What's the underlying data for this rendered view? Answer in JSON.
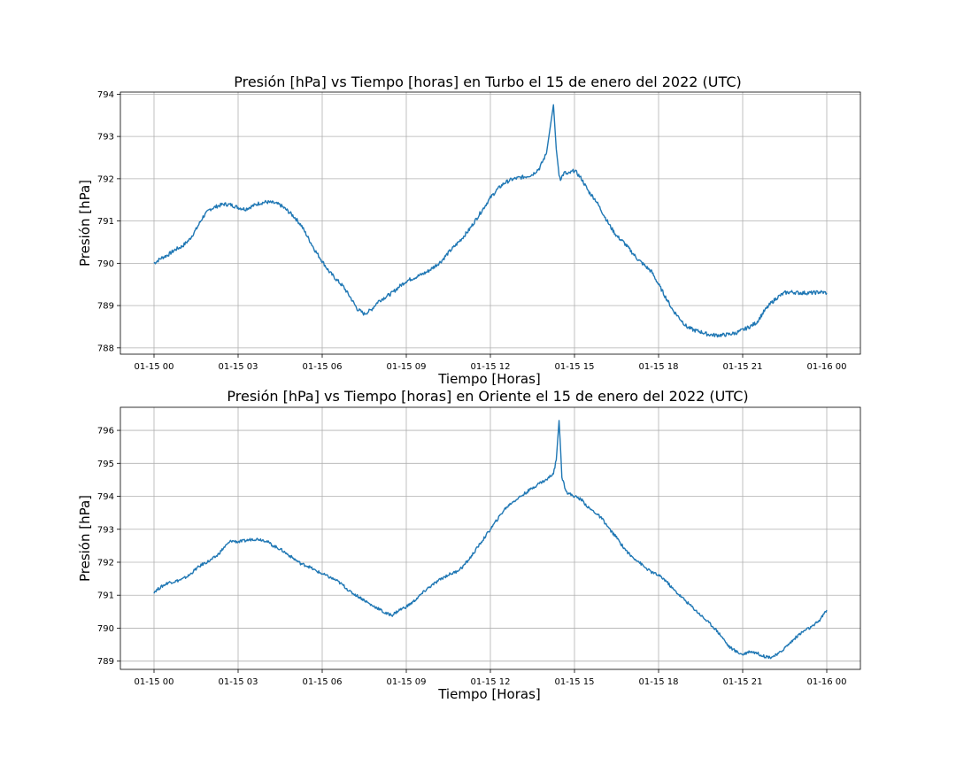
{
  "chart_data": [
    {
      "type": "line",
      "title": "Presión [hPa] vs Tiempo [horas] en Turbo el 15 de enero del 2022 (UTC)",
      "xlabel": "Tiempo [Horas]",
      "ylabel": "Presión [hPa]",
      "x_tick_labels": [
        "01-15 00",
        "01-15 03",
        "01-15 06",
        "01-15 09",
        "01-15 12",
        "01-15 15",
        "01-15 18",
        "01-15 21",
        "01-16 00"
      ],
      "x_ticks_hours": [
        0,
        3,
        6,
        9,
        12,
        15,
        18,
        21,
        24
      ],
      "y_ticks": [
        788,
        789,
        790,
        791,
        792,
        793,
        794
      ],
      "xlim_hours": [
        -1.2,
        25.2
      ],
      "ylim": [
        787.85,
        794.05
      ],
      "grid": true,
      "color": "#1f77b4",
      "series": [
        {
          "x_hours": [
            0,
            0.25,
            0.5,
            0.75,
            1,
            1.25,
            1.5,
            1.75,
            2,
            2.25,
            2.5,
            2.75,
            3,
            3.25,
            3.5,
            3.75,
            4,
            4.25,
            4.5,
            4.75,
            5,
            5.25,
            5.5,
            5.75,
            6,
            6.25,
            6.5,
            6.75,
            7,
            7.25,
            7.5,
            7.75,
            8,
            8.25,
            8.5,
            8.75,
            9,
            9.25,
            9.5,
            9.75,
            10,
            10.25,
            10.5,
            10.75,
            11,
            11.25,
            11.5,
            11.75,
            12,
            12.25,
            12.5,
            12.75,
            13,
            13.25,
            13.5,
            13.75,
            14,
            14.25,
            14.35,
            14.45,
            14.5,
            14.55,
            14.65,
            14.75,
            15,
            15.25,
            15.5,
            15.75,
            16,
            16.25,
            16.5,
            16.75,
            17,
            17.25,
            17.5,
            17.75,
            18,
            18.25,
            18.5,
            18.75,
            19,
            19.25,
            19.5,
            19.75,
            20,
            20.25,
            20.5,
            20.75,
            21,
            21.25,
            21.5,
            21.75,
            22,
            22.25,
            22.5,
            22.75,
            23,
            23.25,
            23.5,
            23.75,
            24
          ],
          "y": [
            790.0,
            790.12,
            790.2,
            790.32,
            790.4,
            790.55,
            790.8,
            791.1,
            791.28,
            791.35,
            791.4,
            791.38,
            791.32,
            791.28,
            791.35,
            791.42,
            791.45,
            791.43,
            791.38,
            791.25,
            791.1,
            790.9,
            790.6,
            790.3,
            790.05,
            789.8,
            789.62,
            789.45,
            789.2,
            788.92,
            788.8,
            788.9,
            789.1,
            789.2,
            789.3,
            789.45,
            789.58,
            789.65,
            789.72,
            789.8,
            789.92,
            790.05,
            790.25,
            790.42,
            790.6,
            790.8,
            791.05,
            791.3,
            791.55,
            791.75,
            791.9,
            791.98,
            792.02,
            792.05,
            792.1,
            792.25,
            792.6,
            793.75,
            792.7,
            792.1,
            792.0,
            792.05,
            792.15,
            792.1,
            792.2,
            792.0,
            791.7,
            791.5,
            791.2,
            790.9,
            790.65,
            790.5,
            790.3,
            790.1,
            789.95,
            789.8,
            789.5,
            789.2,
            788.9,
            788.7,
            788.5,
            788.42,
            788.38,
            788.32,
            788.3,
            788.3,
            788.32,
            788.35,
            788.42,
            788.5,
            788.6,
            788.85,
            789.05,
            789.2,
            789.3,
            789.32,
            789.3,
            789.3,
            789.3,
            789.32,
            789.3
          ]
        }
      ]
    },
    {
      "type": "line",
      "title": "Presión [hPa] vs Tiempo [horas] en Oriente el 15 de enero del 2022 (UTC)",
      "xlabel": "Tiempo [Horas]",
      "ylabel": "Presión [hPa]",
      "x_tick_labels": [
        "01-15 00",
        "01-15 03",
        "01-15 06",
        "01-15 09",
        "01-15 12",
        "01-15 15",
        "01-15 18",
        "01-15 21",
        "01-16 00"
      ],
      "x_ticks_hours": [
        0,
        3,
        6,
        9,
        12,
        15,
        18,
        21,
        24
      ],
      "y_ticks": [
        789,
        790,
        791,
        792,
        793,
        794,
        795,
        796
      ],
      "xlim_hours": [
        -1.2,
        25.2
      ],
      "ylim": [
        788.75,
        796.7
      ],
      "grid": true,
      "color": "#1f77b4",
      "series": [
        {
          "x_hours": [
            0,
            0.25,
            0.5,
            0.75,
            1,
            1.25,
            1.5,
            1.75,
            2,
            2.25,
            2.5,
            2.75,
            3,
            3.25,
            3.5,
            3.75,
            4,
            4.25,
            4.5,
            4.75,
            5,
            5.25,
            5.5,
            5.75,
            6,
            6.25,
            6.5,
            6.75,
            7,
            7.25,
            7.5,
            7.75,
            8,
            8.25,
            8.5,
            8.75,
            9,
            9.25,
            9.5,
            9.75,
            10,
            10.25,
            10.5,
            10.75,
            11,
            11.25,
            11.5,
            11.75,
            12,
            12.25,
            12.5,
            12.75,
            13,
            13.25,
            13.5,
            13.75,
            14,
            14.25,
            14.35,
            14.45,
            14.5,
            14.55,
            14.65,
            14.75,
            15,
            15.25,
            15.5,
            15.75,
            16,
            16.25,
            16.5,
            16.75,
            17,
            17.25,
            17.5,
            17.75,
            18,
            18.25,
            18.5,
            18.75,
            19,
            19.25,
            19.5,
            19.75,
            20,
            20.25,
            20.5,
            20.75,
            21,
            21.25,
            21.5,
            21.75,
            22,
            22.25,
            22.5,
            22.75,
            23,
            23.25,
            23.5,
            23.75,
            24
          ],
          "y": [
            791.1,
            791.25,
            791.38,
            791.42,
            791.48,
            791.6,
            791.8,
            791.95,
            792.05,
            792.2,
            792.45,
            792.65,
            792.62,
            792.65,
            792.7,
            792.7,
            792.65,
            792.5,
            792.4,
            792.25,
            792.1,
            791.95,
            791.88,
            791.75,
            791.65,
            791.55,
            791.45,
            791.3,
            791.1,
            790.98,
            790.85,
            790.7,
            790.6,
            790.45,
            790.4,
            790.55,
            790.65,
            790.8,
            791.0,
            791.2,
            791.35,
            791.5,
            791.62,
            791.7,
            791.85,
            792.1,
            792.4,
            792.7,
            793.0,
            793.3,
            793.6,
            793.8,
            793.95,
            794.1,
            794.25,
            794.4,
            794.5,
            794.7,
            795.1,
            796.3,
            795.5,
            794.6,
            794.3,
            794.1,
            794.0,
            793.9,
            793.65,
            793.5,
            793.3,
            793.0,
            792.75,
            792.45,
            792.2,
            792.05,
            791.85,
            791.7,
            791.6,
            791.45,
            791.2,
            791.0,
            790.8,
            790.6,
            790.4,
            790.2,
            790.0,
            789.75,
            789.45,
            789.3,
            789.2,
            789.3,
            789.25,
            789.15,
            789.12,
            789.2,
            789.4,
            789.6,
            789.8,
            789.95,
            790.05,
            790.25,
            790.55
          ]
        }
      ]
    }
  ]
}
